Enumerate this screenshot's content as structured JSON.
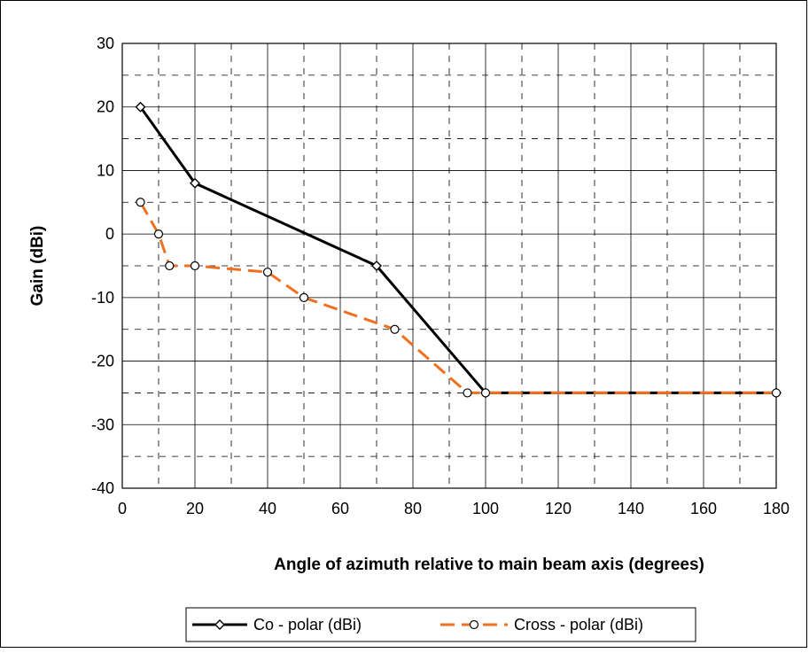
{
  "chart_data": {
    "type": "line",
    "title": "",
    "xlabel": "Angle of azimuth relative to main beam axis (degrees)",
    "ylabel": "Gain (dBi)",
    "xlim": [
      0,
      180
    ],
    "ylim": [
      -40,
      30
    ],
    "xticks": [
      0,
      20,
      40,
      60,
      80,
      100,
      120,
      140,
      160,
      180
    ],
    "yticks": [
      -40,
      -30,
      -20,
      -10,
      0,
      10,
      20,
      30
    ],
    "grid": true,
    "legend_position": "bottom",
    "series": [
      {
        "name": "Co - polar (dBi)",
        "color": "#000000",
        "marker": "diamond",
        "line": "solid",
        "x": [
          5,
          20,
          70,
          100,
          180
        ],
        "y": [
          20,
          8,
          -5,
          -25,
          -25
        ]
      },
      {
        "name": "Cross - polar (dBi)",
        "color": "#f07020",
        "marker": "circle",
        "line": "dashed",
        "x": [
          5,
          10,
          13,
          20,
          40,
          50,
          75,
          95,
          100,
          180
        ],
        "y": [
          5,
          0,
          -5,
          -5,
          -6,
          -10,
          -15,
          -25,
          -25,
          -25
        ]
      }
    ]
  }
}
